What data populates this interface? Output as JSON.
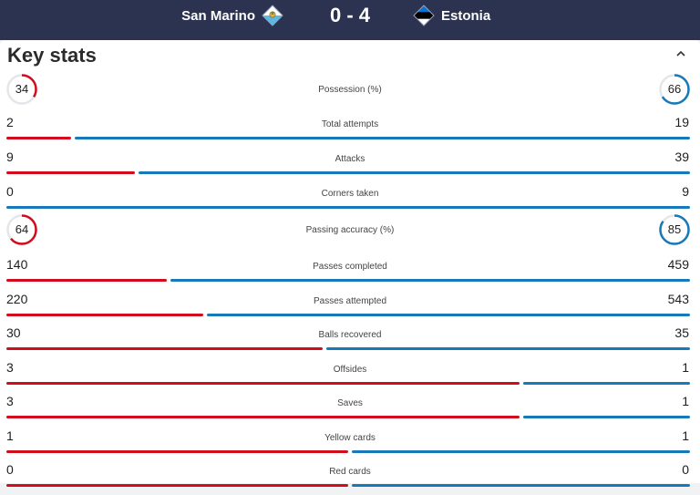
{
  "match": {
    "home_team": "San Marino",
    "away_team": "Estonia",
    "score": "0 - 4",
    "home_color": "#d20c1d",
    "away_color": "#1779b9"
  },
  "section": {
    "title": "Key stats",
    "collapse_icon": "chevron-up-icon"
  },
  "stats": [
    {
      "label": "Possession (%)",
      "home": "34",
      "away": "66",
      "type": "ring",
      "home_fraction": 0.34,
      "away_fraction": 0.66
    },
    {
      "label": "Total attempts",
      "home": "2",
      "away": "19",
      "type": "bar",
      "home_fraction": 0.095
    },
    {
      "label": "Attacks",
      "home": "9",
      "away": "39",
      "type": "bar",
      "home_fraction": 0.1875
    },
    {
      "label": "Corners taken",
      "home": "0",
      "away": "9",
      "type": "bar",
      "home_fraction": 0.0
    },
    {
      "label": "Passing accuracy (%)",
      "home": "64",
      "away": "85",
      "type": "ring",
      "home_fraction": 0.64,
      "away_fraction": 0.85
    },
    {
      "label": "Passes completed",
      "home": "140",
      "away": "459",
      "type": "bar",
      "home_fraction": 0.234
    },
    {
      "label": "Passes attempted",
      "home": "220",
      "away": "543",
      "type": "bar",
      "home_fraction": 0.288
    },
    {
      "label": "Balls recovered",
      "home": "30",
      "away": "35",
      "type": "bar",
      "home_fraction": 0.462
    },
    {
      "label": "Offsides",
      "home": "3",
      "away": "1",
      "type": "bar",
      "home_fraction": 0.75
    },
    {
      "label": "Saves",
      "home": "3",
      "away": "1",
      "type": "bar",
      "home_fraction": 0.75
    },
    {
      "label": "Yellow cards",
      "home": "1",
      "away": "1",
      "type": "bar",
      "home_fraction": 0.5
    },
    {
      "label": "Red cards",
      "home": "0",
      "away": "0",
      "type": "bar",
      "home_fraction": 0.5
    }
  ]
}
